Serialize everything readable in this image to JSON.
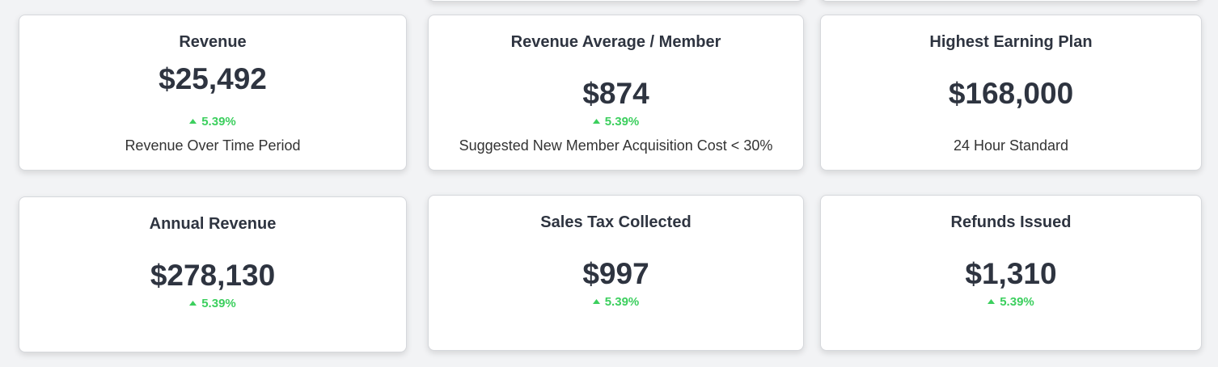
{
  "cards": [
    {
      "title": "Revenue",
      "value": "$25,492",
      "change": "5.39%",
      "subtitle": "Revenue Over Time Period"
    },
    {
      "title": "Revenue Average / Member",
      "value": "$874",
      "change": "5.39%",
      "subtitle": "Suggested New Member Acquisition Cost < 30%"
    },
    {
      "title": "Highest Earning Plan",
      "value": "$168,000",
      "subtitle": "24 Hour Standard"
    },
    {
      "title": "Annual Revenue",
      "value": "$278,130",
      "change": "5.39%"
    },
    {
      "title": "Sales Tax Collected",
      "value": "$997",
      "change": "5.39%"
    },
    {
      "title": "Refunds Issued",
      "value": "$1,310",
      "change": "5.39%"
    }
  ]
}
